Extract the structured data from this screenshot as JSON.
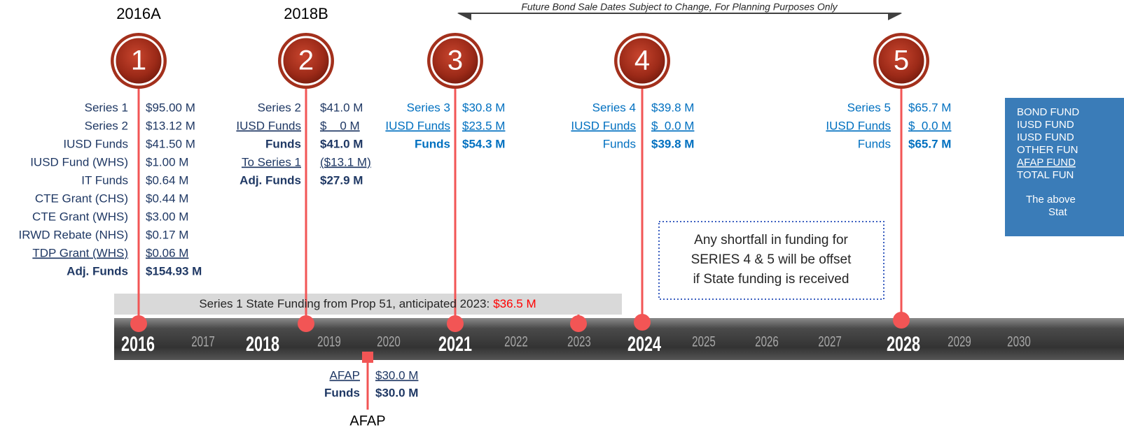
{
  "timeline_note": "Future Bond Sale Dates Subject to Change, For Planning Purposes Only",
  "sales": [
    {
      "number": "1",
      "label": "2016A",
      "color": "#1f3864",
      "rows": [
        {
          "label": "Series 1",
          "value": "$95.00 M"
        },
        {
          "label": "Series 2",
          "value": "$13.12 M"
        },
        {
          "label": "IUSD Funds",
          "value": "$41.50 M"
        },
        {
          "label": "IUSD Fund (WHS)",
          "value": "$1.00 M"
        },
        {
          "label": "IT Funds",
          "value": "$0.64 M"
        },
        {
          "label": "CTE Grant (CHS)",
          "value": "$0.44 M"
        },
        {
          "label": "CTE Grant (WHS)",
          "value": "$3.00 M"
        },
        {
          "label": "IRWD Rebate (NHS)",
          "value": "$0.17 M"
        },
        {
          "label": "TDP Grant (WHS)",
          "value": "$0.06 M",
          "underline": true
        },
        {
          "label": "Adj. Funds",
          "value": "$154.93 M",
          "bold": [
            "label",
            "value"
          ]
        }
      ]
    },
    {
      "number": "2",
      "label": "2018B",
      "color": "#1f3864",
      "rows": [
        {
          "label": "Series 2",
          "value": "$41.0 M"
        },
        {
          "label": "IUSD Funds",
          "value": "$    0 M",
          "underline": true
        },
        {
          "label": "Funds",
          "value": "$41.0 M",
          "bold": [
            "label",
            "value"
          ]
        },
        {
          "label": "To Series 1",
          "value": "($13.1 M)",
          "underline": true
        },
        {
          "label": "Adj. Funds",
          "value": "$27.9 M",
          "bold": [
            "label",
            "value"
          ]
        }
      ]
    },
    {
      "number": "3",
      "color": "#0070c0",
      "rows": [
        {
          "label": "Series 3",
          "value": "$30.8 M"
        },
        {
          "label": "IUSD Funds",
          "value": "$23.5 M",
          "underline": true
        },
        {
          "label": "Funds",
          "value": "$54.3 M",
          "bold": [
            "label",
            "value"
          ]
        }
      ]
    },
    {
      "number": "4",
      "color": "#0070c0",
      "rows": [
        {
          "label": "Series 4",
          "value": "$39.8 M"
        },
        {
          "label": "IUSD Funds",
          "value": "$  0.0 M",
          "underline": true
        },
        {
          "label": "Funds",
          "value": "$39.8 M",
          "bold": [
            "value"
          ]
        }
      ]
    },
    {
      "number": "5",
      "color": "#0070c0",
      "rows": [
        {
          "label": "Series 5",
          "value": "$65.7 M"
        },
        {
          "label": "IUSD Funds",
          "value": "$  0.0 M",
          "underline": true
        },
        {
          "label": "Funds",
          "value": "$65.7 M",
          "bold": [
            "value"
          ]
        }
      ]
    }
  ],
  "years": [
    {
      "label": "2016",
      "major": true
    },
    {
      "label": "2017"
    },
    {
      "label": "2018",
      "major": true
    },
    {
      "label": "2019"
    },
    {
      "label": "2020"
    },
    {
      "label": "2021",
      "major": true
    },
    {
      "label": "2022"
    },
    {
      "label": "2023"
    },
    {
      "label": "2024",
      "major": true
    },
    {
      "label": "2025"
    },
    {
      "label": "2026"
    },
    {
      "label": "2027"
    },
    {
      "label": "2028",
      "major": true
    },
    {
      "label": "2029"
    },
    {
      "label": "2030"
    }
  ],
  "state_funding": {
    "text": "Series 1 State Funding from Prop 51, anticipated 2023:",
    "amount": "$36.5 M"
  },
  "shortfall_note": [
    "Any shortfall in funding for",
    "SERIES 4 & 5 will be offset",
    "if State funding is received"
  ],
  "afap": {
    "label": "AFAP",
    "color": "#1f3864",
    "rows": [
      {
        "label": "AFAP",
        "value": "$30.0 M",
        "underline": true
      },
      {
        "label": "Funds",
        "value": "$30.0 M",
        "bold": [
          "label",
          "value"
        ]
      }
    ]
  },
  "summary_box": {
    "lines": [
      "BOND FUND",
      "IUSD FUND",
      "IUSD FUND",
      "OTHER FUN",
      "AFAP FUND",
      "TOTAL FUN"
    ],
    "underlined_line": 4,
    "note": [
      "The above",
      "Stat"
    ]
  }
}
